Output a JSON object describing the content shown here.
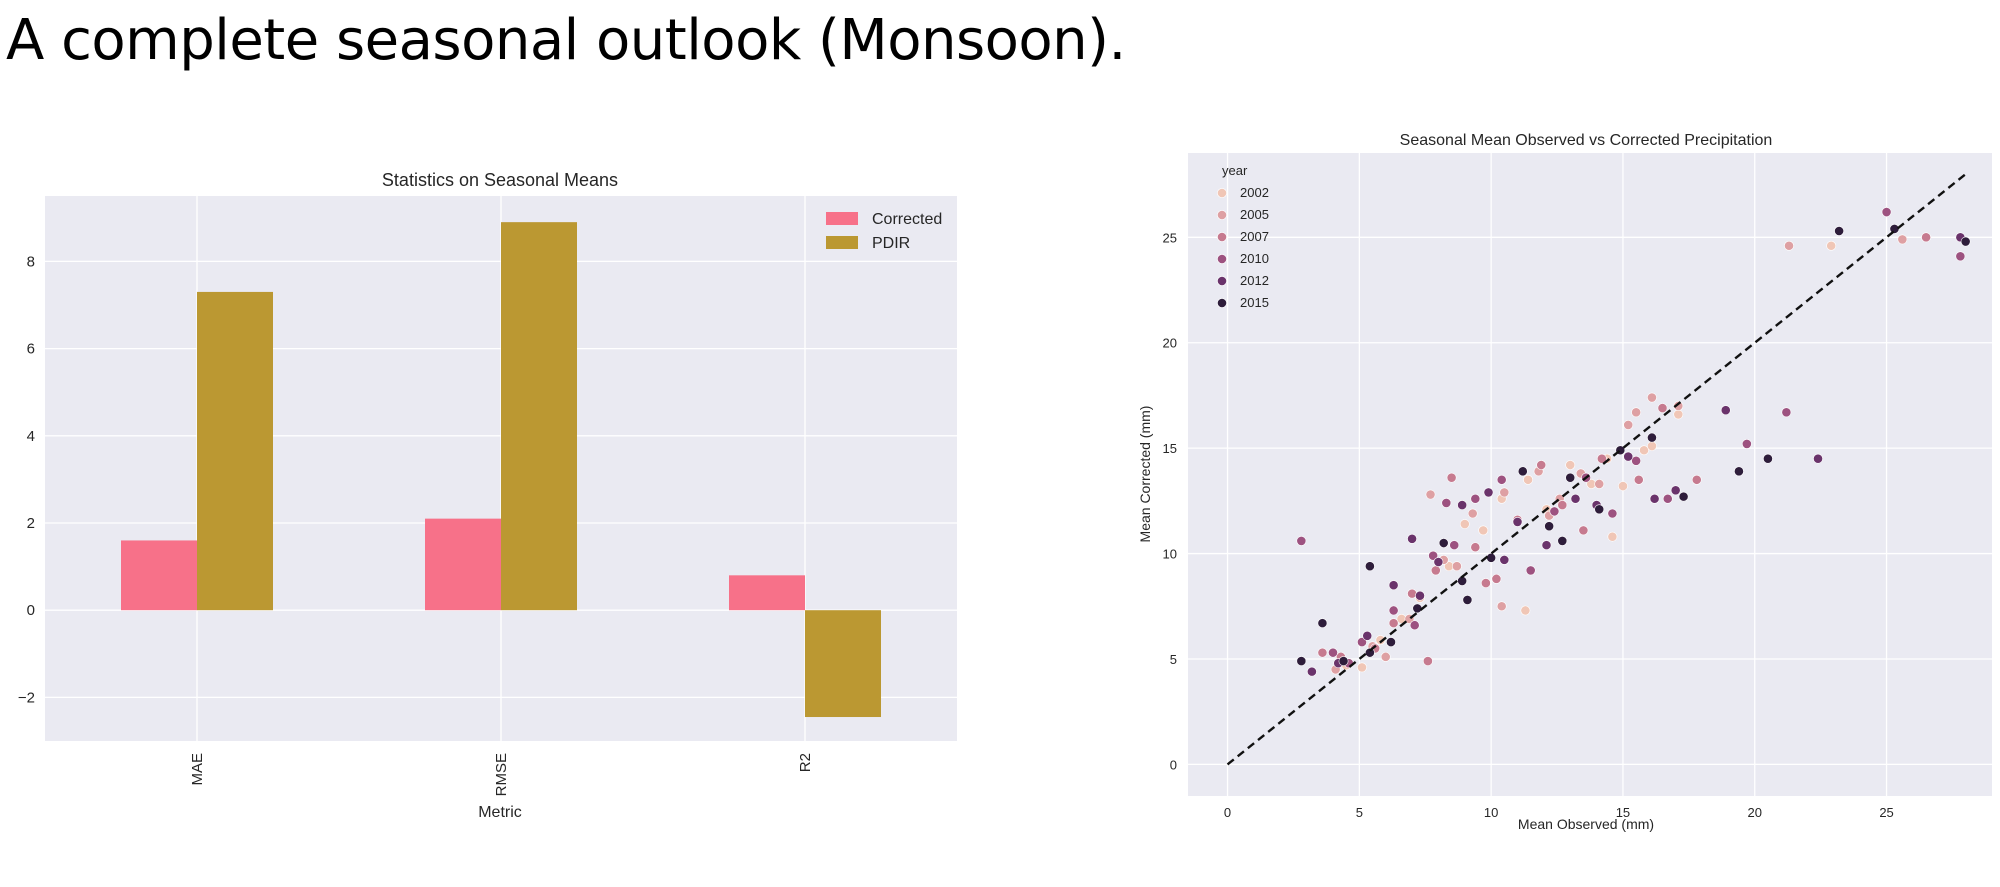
{
  "slide_title": "A complete seasonal outlook (Monsoon).",
  "chart_data": [
    {
      "type": "bar",
      "title": "Statistics on Seasonal Means",
      "xlabel": "Metric",
      "ylabel": "",
      "categories": [
        "MAE",
        "RMSE",
        "R2"
      ],
      "series": [
        {
          "name": "Corrected",
          "values": [
            1.6,
            2.1,
            0.8
          ],
          "color": "#f77189"
        },
        {
          "name": "PDIR",
          "values": [
            7.3,
            8.9,
            -2.45
          ],
          "color": "#bb9832"
        }
      ],
      "ylim": [
        -3,
        9.5
      ],
      "yticks": [
        -2,
        0,
        2,
        4,
        6,
        8
      ],
      "ytick_labels": [
        "−2",
        "0",
        "2",
        "4",
        "6",
        "8"
      ],
      "grid": true,
      "legend": "top-right",
      "background": "#eaeaf2"
    },
    {
      "type": "scatter",
      "title": "Seasonal Mean Observed vs Corrected Precipitation",
      "xlabel": "Mean Observed (mm)",
      "ylabel": "Mean Corrected (mm)",
      "xlim": [
        -1.5,
        29
      ],
      "ylim": [
        -1.5,
        29
      ],
      "xticks": [
        0,
        5,
        10,
        15,
        20,
        25
      ],
      "yticks": [
        0,
        5,
        10,
        15,
        20,
        25
      ],
      "grid": true,
      "legend": "top-left",
      "legend_title": "year",
      "background": "#eaeaf2",
      "reference_line": {
        "x": [
          0,
          28
        ],
        "y": [
          0,
          28
        ],
        "style": "dashed",
        "color": "#111111"
      },
      "series": [
        {
          "name": "2002",
          "color": "#f0c6b6",
          "x": [
            4.5,
            5.8,
            7.3,
            8.4,
            9.7,
            10.4,
            11.4,
            12.1,
            13.0,
            13.8,
            14.4,
            15.0,
            15.8,
            16.1,
            17.1,
            11.3,
            22.9,
            5.1,
            6.6,
            9.0,
            14.6
          ],
          "y": [
            4.7,
            5.9,
            7.9,
            9.4,
            11.1,
            12.6,
            13.5,
            12.1,
            14.2,
            13.3,
            14.5,
            13.2,
            14.9,
            15.1,
            16.6,
            7.3,
            24.6,
            4.6,
            6.9,
            11.4,
            10.8
          ]
        },
        {
          "name": "2005",
          "color": "#dea0a3",
          "x": [
            4.1,
            5.5,
            6.9,
            8.2,
            9.3,
            10.5,
            11.8,
            12.6,
            13.4,
            14.1,
            15.2,
            16.1,
            17.1,
            21.3,
            25.6,
            7.7,
            10.4,
            12.2,
            6.0,
            8.7,
            15.5
          ],
          "y": [
            4.5,
            5.6,
            6.9,
            9.7,
            11.9,
            12.9,
            13.9,
            12.6,
            13.8,
            13.3,
            16.1,
            17.4,
            17.0,
            24.6,
            24.9,
            12.8,
            7.5,
            11.8,
            5.1,
            9.4,
            16.7
          ]
        },
        {
          "name": "2007",
          "color": "#c67a8f",
          "x": [
            4.3,
            5.6,
            6.3,
            7.0,
            7.9,
            8.5,
            9.4,
            10.2,
            11.0,
            11.9,
            12.7,
            13.5,
            14.2,
            15.6,
            16.5,
            17.8,
            26.5,
            3.6,
            7.6,
            9.8
          ],
          "y": [
            5.1,
            5.5,
            6.7,
            8.1,
            9.2,
            13.6,
            10.3,
            8.8,
            11.6,
            14.2,
            12.3,
            11.1,
            14.5,
            13.5,
            16.9,
            13.5,
            25.0,
            5.3,
            4.9,
            8.6
          ]
        },
        {
          "name": "2010",
          "color": "#9d5280",
          "x": [
            2.8,
            4.0,
            5.1,
            6.3,
            7.1,
            7.8,
            8.6,
            9.4,
            10.4,
            11.5,
            12.4,
            13.6,
            14.6,
            15.5,
            16.7,
            19.7,
            21.2,
            25.0,
            27.8,
            4.6,
            8.3
          ],
          "y": [
            10.6,
            5.3,
            5.8,
            7.3,
            6.6,
            9.9,
            10.4,
            12.6,
            13.5,
            9.2,
            12.0,
            13.6,
            11.9,
            14.4,
            12.6,
            15.2,
            16.7,
            26.2,
            24.1,
            4.8,
            12.4
          ]
        },
        {
          "name": "2012",
          "color": "#6a336b",
          "x": [
            3.2,
            4.2,
            5.3,
            6.3,
            7.3,
            8.0,
            8.9,
            9.9,
            11.0,
            12.1,
            13.2,
            14.0,
            15.2,
            16.2,
            17.0,
            18.9,
            22.4,
            27.8,
            7.0,
            10.5
          ],
          "y": [
            4.4,
            4.8,
            6.1,
            8.5,
            8.0,
            9.6,
            12.3,
            12.9,
            11.5,
            10.4,
            12.6,
            12.3,
            14.6,
            12.6,
            13.0,
            16.8,
            14.5,
            25.0,
            10.7,
            9.7
          ]
        },
        {
          "name": "2015",
          "color": "#2e1d3b",
          "x": [
            2.8,
            3.6,
            4.4,
            5.4,
            6.2,
            7.2,
            8.2,
            9.1,
            10.0,
            11.2,
            12.2,
            13.0,
            14.1,
            14.9,
            16.1,
            17.3,
            19.4,
            20.5,
            23.2,
            25.3,
            28.0,
            5.4,
            8.9,
            12.7
          ],
          "y": [
            4.9,
            6.7,
            4.9,
            9.4,
            5.8,
            7.4,
            10.5,
            7.8,
            9.8,
            13.9,
            11.3,
            13.6,
            12.1,
            14.9,
            15.5,
            12.7,
            13.9,
            14.5,
            25.3,
            25.4,
            24.8,
            5.3,
            8.7,
            10.6
          ]
        }
      ]
    }
  ]
}
